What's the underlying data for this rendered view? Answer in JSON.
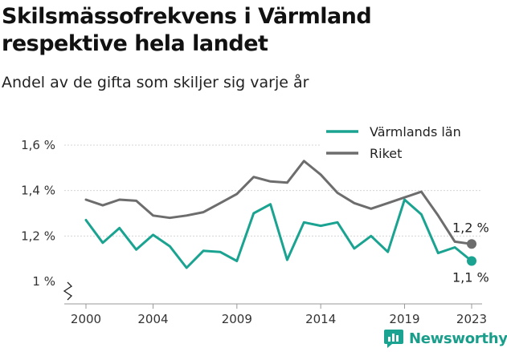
{
  "title": "Skilsmässofrekvens i Värmland respektive hela landet",
  "subtitle": "Andel av de gifta som skiljer sig varje år",
  "brand": "Newsworthy",
  "colors": {
    "varmland": "#1aa391",
    "riket": "#6d6d6d"
  },
  "chart_data": {
    "type": "line",
    "title": "Skilsmässofrekvens i Värmland respektive hela landet",
    "subtitle": "Andel av de gifta som skiljer sig varje år",
    "x": [
      2000,
      2001,
      2002,
      2003,
      2004,
      2005,
      2006,
      2007,
      2008,
      2009,
      2010,
      2011,
      2012,
      2013,
      2014,
      2015,
      2016,
      2017,
      2018,
      2019,
      2020,
      2021,
      2022,
      2023
    ],
    "series": [
      {
        "name": "Värmlands län",
        "color": "#1aa391",
        "values": [
          1.27,
          1.17,
          1.235,
          1.14,
          1.205,
          1.155,
          1.06,
          1.135,
          1.13,
          1.09,
          1.3,
          1.34,
          1.095,
          1.26,
          1.245,
          1.26,
          1.145,
          1.2,
          1.13,
          1.36,
          1.295,
          1.125,
          1.15,
          1.09
        ]
      },
      {
        "name": "Riket",
        "color": "#6d6d6d",
        "values": [
          1.36,
          1.335,
          1.36,
          1.355,
          1.29,
          1.28,
          1.29,
          1.305,
          1.345,
          1.385,
          1.46,
          1.44,
          1.435,
          1.53,
          1.47,
          1.39,
          1.345,
          1.32,
          1.345,
          1.37,
          1.395,
          1.29,
          1.175,
          1.165
        ]
      }
    ],
    "xticks": [
      "2000",
      "2004",
      "2009",
      "2014",
      "2019",
      "2023"
    ],
    "xtick_values": [
      2000,
      2004,
      2009,
      2014,
      2019,
      2023
    ],
    "yticks": [
      "1 %",
      "1,2 %",
      "1,4 %",
      "1,6 %"
    ],
    "ytick_values": [
      1.0,
      1.2,
      1.4,
      1.6
    ],
    "xlim": [
      2000,
      2023
    ],
    "ylim": [
      1.0,
      1.6
    ],
    "end_labels": [
      "1,1 %",
      "1,2 %"
    ],
    "legend_position": "top-right",
    "grid": "horizontal"
  }
}
